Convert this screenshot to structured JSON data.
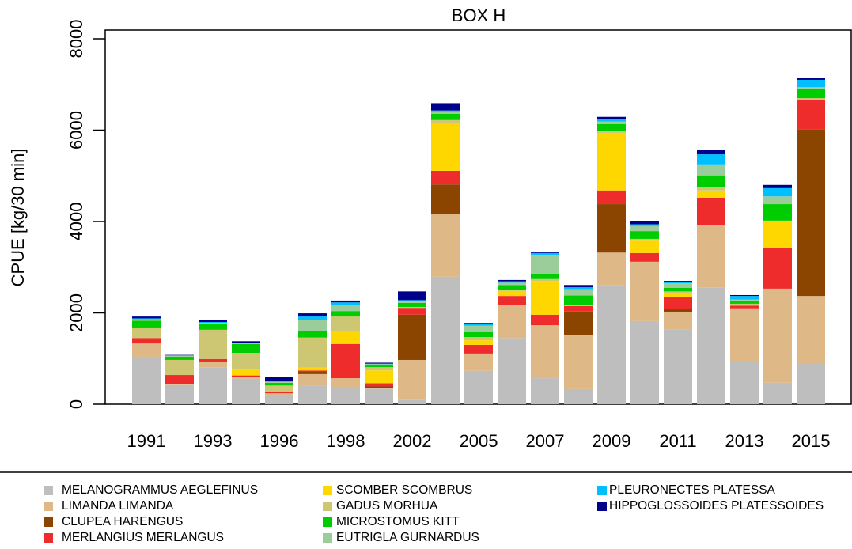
{
  "chart_data": {
    "type": "stacked_bar",
    "title": "BOX H",
    "y_label": "CPUE [kg/30 min]",
    "categories": [
      "1991",
      null,
      "1993",
      null,
      "1996",
      null,
      "1998",
      null,
      "2002",
      null,
      "2005",
      null,
      "2007",
      null,
      "2009",
      null,
      "2011",
      null,
      "2013",
      null,
      "2015"
    ],
    "ylim": [
      0,
      8000
    ],
    "yticks": [
      0,
      2000,
      4000,
      6000,
      8000
    ],
    "series": [
      {
        "name": "MELANOGRAMMUS AEGLEFINUS",
        "color": "#bebebe",
        "values": [
          1040,
          420,
          800,
          560,
          190,
          400,
          350,
          340,
          100,
          2790,
          730,
          1450,
          570,
          330,
          2600,
          1820,
          1630,
          2550,
          920,
          470,
          900
        ]
      },
      {
        "name": "LIMANDA LIMANDA",
        "color": "#deb887",
        "values": [
          290,
          30,
          120,
          40,
          50,
          260,
          220,
          20,
          870,
          1380,
          380,
          730,
          1160,
          1190,
          720,
          1300,
          380,
          1380,
          1180,
          2060,
          1470
        ]
      },
      {
        "name": "CLUPEA HARENGUS",
        "color": "#8b4500",
        "values": [
          0,
          0,
          0,
          0,
          0,
          50,
          0,
          30,
          990,
          640,
          0,
          0,
          0,
          510,
          1060,
          0,
          70,
          0,
          0,
          0,
          3640
        ]
      },
      {
        "name": "MERLANGIUS MERLANGUS",
        "color": "#ee2c2c",
        "values": [
          120,
          190,
          70,
          30,
          20,
          30,
          750,
          70,
          150,
          300,
          190,
          190,
          230,
          120,
          300,
          190,
          260,
          590,
          60,
          900,
          660
        ]
      },
      {
        "name": "SCOMBER SCOMBRUS",
        "color": "#ffd700",
        "values": [
          0,
          0,
          0,
          130,
          0,
          60,
          290,
          280,
          0,
          1040,
          100,
          110,
          740,
          0,
          1260,
          270,
          100,
          160,
          0,
          590,
          0
        ]
      },
      {
        "name": "GADUS MORHUA",
        "color": "#cdc673",
        "values": [
          230,
          330,
          640,
          365,
          150,
          660,
          310,
          70,
          20,
          70,
          70,
          30,
          40,
          30,
          40,
          40,
          30,
          80,
          40,
          0,
          30
        ]
      },
      {
        "name": "MICROSTOMUS KITT",
        "color": "#00cd00",
        "values": [
          150,
          70,
          120,
          195,
          60,
          150,
          120,
          40,
          90,
          140,
          110,
          100,
          100,
          200,
          150,
          170,
          80,
          250,
          70,
          360,
          210
        ]
      },
      {
        "name": "EUTRIGLA GURNARDUS",
        "color": "#9bcd9b",
        "values": [
          30,
          20,
          30,
          20,
          20,
          240,
          120,
          30,
          40,
          50,
          140,
          50,
          430,
          140,
          60,
          110,
          100,
          240,
          20,
          170,
          30
        ]
      },
      {
        "name": "PLEURONECTES PLATESSA",
        "color": "#00bfff",
        "values": [
          20,
          10,
          20,
          10,
          10,
          70,
          70,
          10,
          20,
          20,
          30,
          30,
          40,
          40,
          50,
          40,
          30,
          220,
          80,
          180,
          160
        ]
      },
      {
        "name": "HIPPOGLOSSOIDES PLATESSOIDES",
        "color": "#00008b",
        "values": [
          40,
          10,
          50,
          30,
          90,
          70,
          40,
          20,
          190,
          160,
          30,
          30,
          30,
          50,
          50,
          60,
          20,
          90,
          20,
          70,
          50
        ]
      }
    ]
  }
}
